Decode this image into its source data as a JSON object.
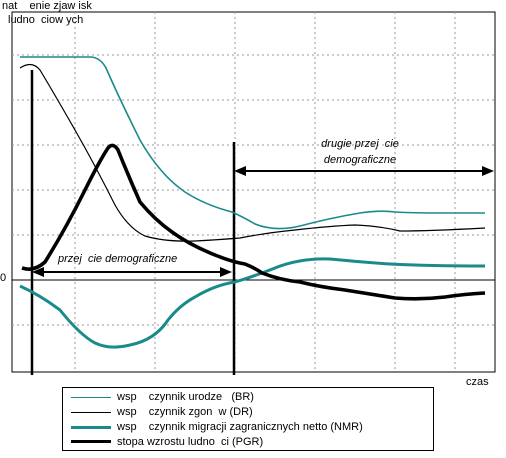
{
  "axes": {
    "y_label_line1": "nat    enie zjaw isk",
    "y_label_line2": "ludno  ciow ych",
    "x_label": "czas",
    "zero_label": "0"
  },
  "annotations": {
    "first_transition": "przej  cie demograficzne",
    "second_transition_line1": "drugie przej  cie",
    "second_transition_line2": "demograficzne"
  },
  "legend": [
    {
      "label": "wsp    czynnik urodze   (BR)",
      "color": "#1a8a8a",
      "weight": "thin"
    },
    {
      "label": "wsp    czynnik zgon  w (DR)",
      "color": "#000000",
      "weight": "thin"
    },
    {
      "label": "wsp    czynnik migracji zagranicznych netto (NMR)",
      "color": "#1a8a8a",
      "weight": "thick"
    },
    {
      "label": "stopa wzrostu ludno  ci (PGR)",
      "color": "#000000",
      "weight": "bold"
    }
  ],
  "colors": {
    "teal": "#1a8a8a",
    "black": "#000000",
    "grid": "#9a9a9a"
  }
}
